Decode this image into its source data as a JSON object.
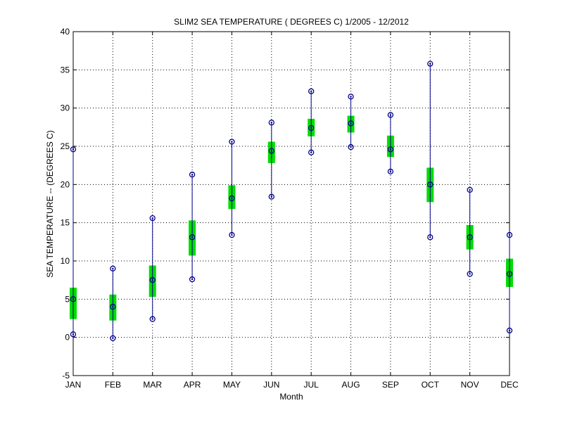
{
  "chart_data": {
    "type": "box",
    "title": "SLIM2  SEA TEMPERATURE ( DEGREES C) 1/2005 - 12/2012",
    "xlabel": "Month",
    "ylabel": "SEA TEMPERATURE -- (DEGREES C)",
    "ylim": [
      -5,
      40
    ],
    "yticks": [
      -5,
      0,
      5,
      10,
      15,
      20,
      25,
      30,
      35,
      40
    ],
    "grid": true,
    "categories": [
      "JAN",
      "FEB",
      "MAR",
      "APR",
      "MAY",
      "JUN",
      "JUL",
      "AUG",
      "SEP",
      "OCT",
      "NOV",
      "DEC"
    ],
    "min": [
      0.4,
      -0.1,
      2.4,
      7.6,
      13.4,
      18.4,
      24.2,
      24.9,
      21.7,
      13.1,
      8.3,
      0.9
    ],
    "q1": [
      2.4,
      2.2,
      5.3,
      10.7,
      16.8,
      22.8,
      26.3,
      26.8,
      23.6,
      17.7,
      11.5,
      6.6
    ],
    "median": [
      5.0,
      4.0,
      7.5,
      13.1,
      18.2,
      24.4,
      27.4,
      28.0,
      24.6,
      20.0,
      13.1,
      8.3
    ],
    "q3": [
      6.5,
      5.6,
      9.4,
      15.3,
      19.9,
      25.6,
      28.6,
      29.0,
      26.4,
      22.2,
      14.7,
      10.3
    ],
    "max": [
      24.6,
      9.0,
      15.6,
      21.3,
      25.6,
      28.1,
      32.2,
      31.5,
      29.1,
      35.8,
      19.3,
      13.4
    ],
    "colors": {
      "whisker": "#00008b",
      "box": "#00dd00",
      "grid": "#000000",
      "marker": "#00008b"
    }
  }
}
